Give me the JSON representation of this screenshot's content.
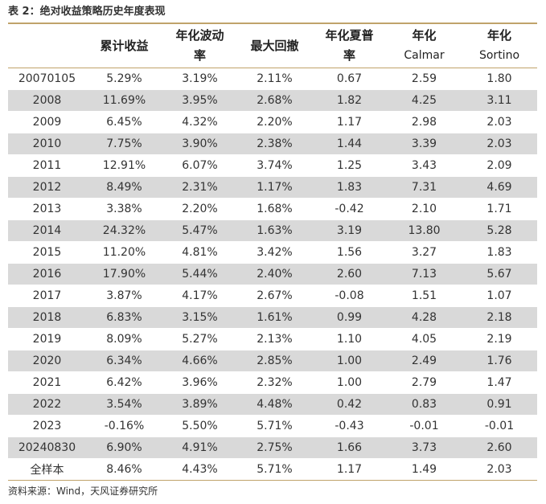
{
  "caption": "表 2：绝对收益策略历史年度表现",
  "columns": [
    {
      "line1": "",
      "line2": ""
    },
    {
      "line1": "累计收益",
      "line2": ""
    },
    {
      "line1": "年化波动",
      "line2": "率"
    },
    {
      "line1": "最大回撤",
      "line2": ""
    },
    {
      "line1": "年化夏普",
      "line2": "率"
    },
    {
      "line1": "年化",
      "line2": "Calmar"
    },
    {
      "line1": "年化",
      "line2": "Sortino"
    }
  ],
  "rows": [
    [
      "20070105",
      "5.29%",
      "3.19%",
      "2.11%",
      "0.67",
      "2.59",
      "1.80"
    ],
    [
      "2008",
      "11.69%",
      "3.95%",
      "2.68%",
      "1.82",
      "4.25",
      "3.11"
    ],
    [
      "2009",
      "6.45%",
      "4.32%",
      "2.20%",
      "1.17",
      "2.98",
      "2.03"
    ],
    [
      "2010",
      "7.75%",
      "3.90%",
      "2.38%",
      "1.44",
      "3.39",
      "2.03"
    ],
    [
      "2011",
      "12.91%",
      "6.07%",
      "3.74%",
      "1.25",
      "3.43",
      "2.09"
    ],
    [
      "2012",
      "8.49%",
      "2.31%",
      "1.17%",
      "1.83",
      "7.31",
      "4.69"
    ],
    [
      "2013",
      "3.38%",
      "2.20%",
      "1.68%",
      "-0.42",
      "2.10",
      "1.71"
    ],
    [
      "2014",
      "24.32%",
      "5.47%",
      "1.63%",
      "3.19",
      "13.80",
      "5.28"
    ],
    [
      "2015",
      "11.20%",
      "4.81%",
      "3.42%",
      "1.56",
      "3.27",
      "1.83"
    ],
    [
      "2016",
      "17.90%",
      "5.44%",
      "2.40%",
      "2.60",
      "7.13",
      "5.67"
    ],
    [
      "2017",
      "3.87%",
      "4.17%",
      "2.67%",
      "-0.08",
      "1.51",
      "1.07"
    ],
    [
      "2018",
      "6.83%",
      "3.15%",
      "1.61%",
      "0.99",
      "4.28",
      "2.18"
    ],
    [
      "2019",
      "8.09%",
      "5.27%",
      "2.13%",
      "1.10",
      "4.05",
      "2.19"
    ],
    [
      "2020",
      "6.34%",
      "4.66%",
      "2.85%",
      "1.00",
      "2.49",
      "1.76"
    ],
    [
      "2021",
      "6.42%",
      "3.96%",
      "2.32%",
      "1.00",
      "2.79",
      "1.47"
    ],
    [
      "2022",
      "3.54%",
      "3.89%",
      "4.48%",
      "0.42",
      "0.83",
      "0.91"
    ],
    [
      "2023",
      "-0.16%",
      "5.50%",
      "5.71%",
      "-0.43",
      "-0.01",
      "-0.01"
    ],
    [
      "20240830",
      "6.90%",
      "4.91%",
      "2.75%",
      "1.66",
      "3.73",
      "2.60"
    ],
    [
      "全样本",
      "8.46%",
      "4.43%",
      "5.71%",
      "1.17",
      "1.49",
      "2.03"
    ]
  ],
  "source": "资料来源：Wind，天风证券研究所",
  "colors": {
    "rule": "#c0a36a",
    "row_shade": "#d9d9d9"
  }
}
